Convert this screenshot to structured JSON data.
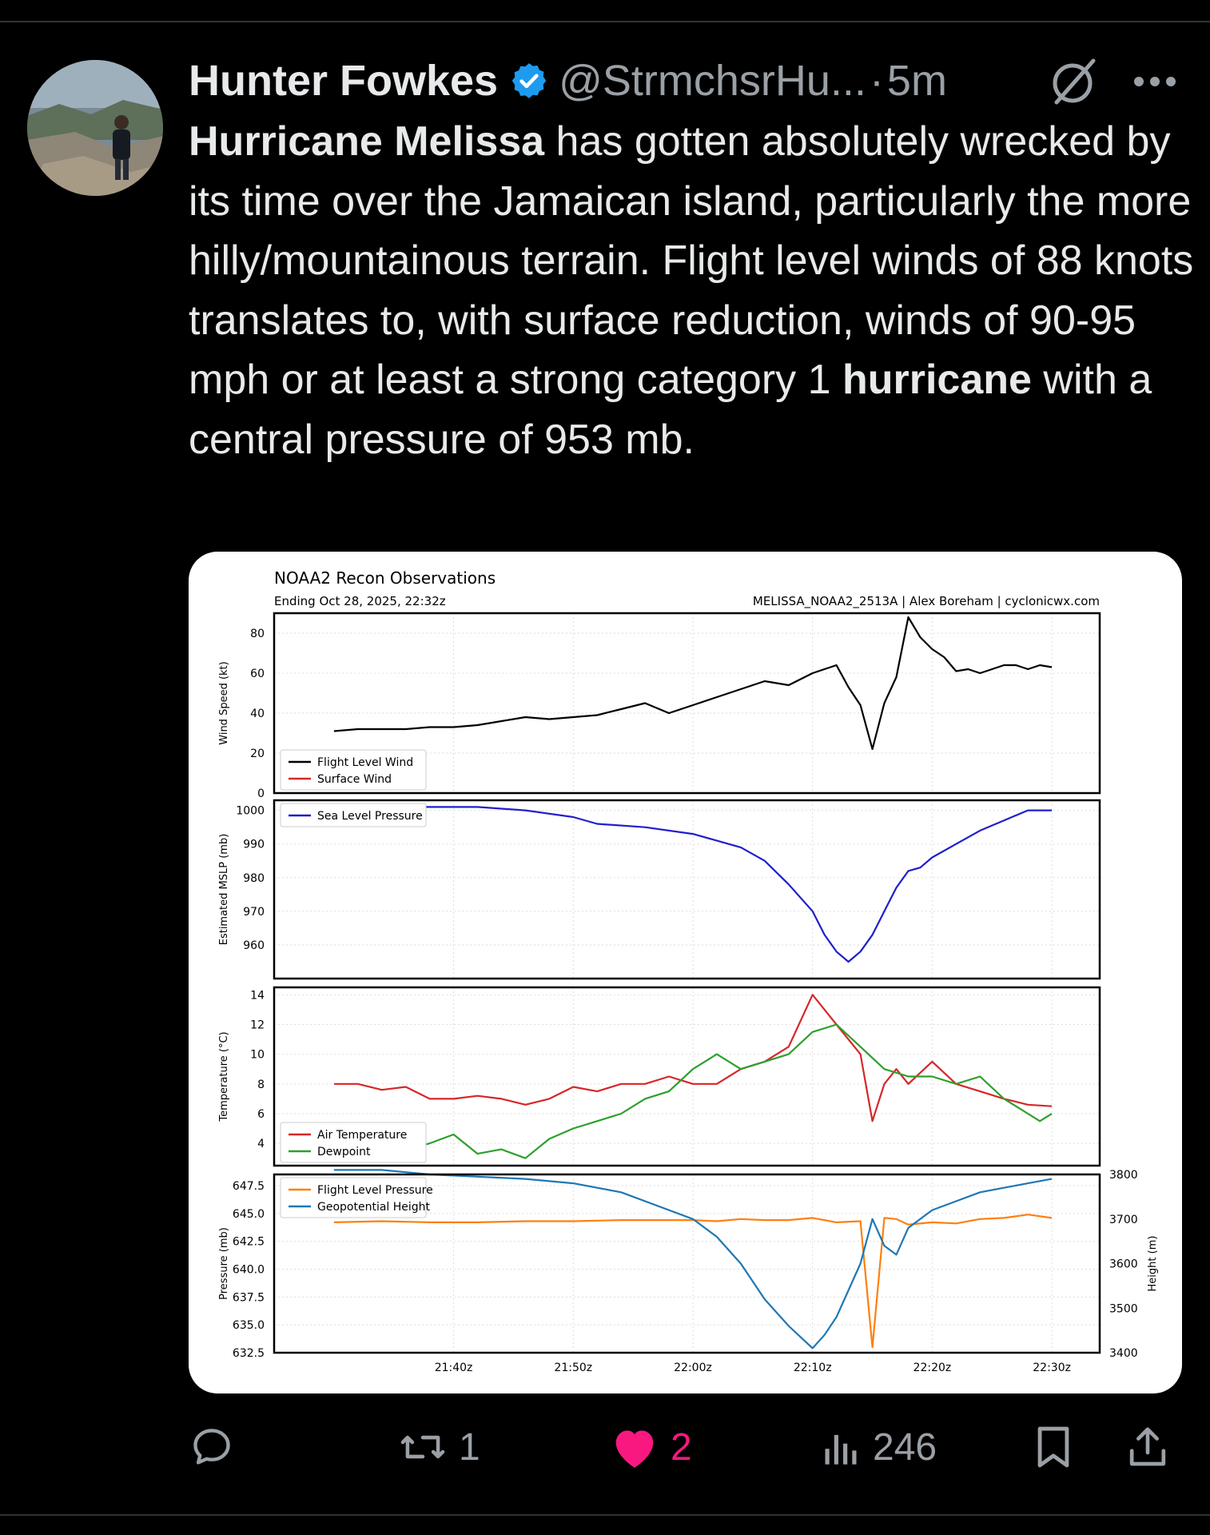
{
  "tweet": {
    "author_name": "Hunter Fowkes",
    "handle": "@StrmchsrHu...",
    "separator": "·",
    "time": "5m",
    "text_parts": [
      {
        "text": "Hurricane Melissa",
        "bold": true
      },
      {
        "text": " has gotten absolutely wrecked by its time over the Jamaican island, particularly the more hilly/mountainous terrain. Flight level winds of 88 knots translates to, with surface reduction, winds of 90-95 mph or at least a strong category 1 ",
        "bold": false
      },
      {
        "text": "hurricane",
        "bold": true
      },
      {
        "text": " with a central pressure of 953 mb.",
        "bold": false
      }
    ]
  },
  "actions": {
    "replies": "",
    "reposts": "1",
    "likes": "2",
    "views": "246"
  },
  "colors": {
    "like": "#f91880",
    "verified": "#1d9bf0",
    "muted": "#9aa0a6"
  },
  "chart_data": [
    {
      "type": "line",
      "title": "NOAA2 Recon Observations",
      "subtitle": "Ending Oct 28, 2025, 22:32z",
      "source": "MELISSA_NOAA2_2513A | Alex Boreham | cyclonicwx.com",
      "ylabel": "Wind Speed (kt)",
      "ylim": [
        0,
        90
      ],
      "yticks": [
        0,
        20,
        40,
        60,
        80
      ],
      "x_tick_labels": [
        "21:40z",
        "21:50z",
        "22:00z",
        "22:10z",
        "22:20z",
        "22:30z"
      ],
      "series": [
        {
          "name": "Flight Level Wind",
          "color": "#000000",
          "x": [
            0,
            2,
            4,
            6,
            8,
            10,
            12,
            14,
            16,
            18,
            20,
            22,
            24,
            26,
            28,
            30,
            32,
            34,
            36,
            38,
            40,
            42,
            43,
            44,
            45,
            46,
            47,
            48,
            49,
            50,
            51,
            52,
            53,
            54,
            55,
            56,
            57,
            58,
            59,
            60
          ],
          "y": [
            31,
            32,
            32,
            32,
            33,
            33,
            34,
            36,
            38,
            37,
            38,
            39,
            42,
            45,
            40,
            44,
            48,
            52,
            56,
            54,
            60,
            64,
            53,
            44,
            22,
            45,
            58,
            88,
            78,
            72,
            68,
            61,
            62,
            60,
            62,
            64,
            64,
            62,
            64,
            63
          ]
        },
        {
          "name": "Surface Wind",
          "color": "#d62728",
          "x": [],
          "y": []
        }
      ]
    },
    {
      "type": "line",
      "ylabel": "Estimated MSLP (mb)",
      "ylim": [
        950,
        1003
      ],
      "yticks": [
        960,
        970,
        980,
        990,
        1000
      ],
      "series": [
        {
          "name": "Sea Level Pressure",
          "color": "#1f1fcc",
          "x": [
            0,
            4,
            8,
            12,
            16,
            20,
            22,
            26,
            30,
            34,
            36,
            38,
            40,
            41,
            42,
            43,
            44,
            45,
            46,
            47,
            48,
            49,
            50,
            52,
            54,
            56,
            58,
            60
          ],
          "y": [
            1001,
            1001,
            1001,
            1001,
            1000,
            998,
            996,
            995,
            993,
            989,
            985,
            978,
            970,
            963,
            958,
            955,
            958,
            963,
            970,
            977,
            982,
            983,
            986,
            990,
            994,
            997,
            1000,
            1000
          ]
        }
      ]
    },
    {
      "type": "line",
      "ylabel": "Temperature (°C)",
      "ylim": [
        2.5,
        14.5
      ],
      "yticks": [
        4,
        6,
        8,
        10,
        12,
        14
      ],
      "series": [
        {
          "name": "Air Temperature",
          "color": "#d62728",
          "x": [
            0,
            2,
            4,
            6,
            8,
            10,
            12,
            14,
            16,
            18,
            20,
            22,
            24,
            26,
            28,
            30,
            32,
            34,
            36,
            38,
            40,
            42,
            44,
            45,
            46,
            47,
            48,
            50,
            52,
            54,
            56,
            58,
            60
          ],
          "y": [
            8,
            8,
            7.6,
            7.8,
            7,
            7,
            7.2,
            7,
            6.6,
            7,
            7.8,
            7.5,
            8,
            8,
            8.5,
            8,
            8,
            9,
            9.5,
            10.5,
            14,
            12,
            10,
            5.5,
            8,
            9,
            8,
            9.5,
            8,
            7.5,
            7,
            6.6,
            6.5
          ]
        },
        {
          "name": "Dewpoint",
          "color": "#2ca02c",
          "x": [
            0,
            2,
            4,
            6,
            8,
            10,
            12,
            14,
            16,
            18,
            20,
            22,
            24,
            26,
            28,
            30,
            32,
            34,
            36,
            38,
            40,
            42,
            44,
            46,
            48,
            50,
            52,
            54,
            56,
            58,
            59,
            60
          ],
          "y": [
            3.7,
            3.8,
            3.5,
            3.5,
            4,
            4.6,
            3.3,
            3.6,
            3,
            4.3,
            5,
            5.5,
            6,
            7,
            7.5,
            9,
            10,
            9,
            9.5,
            10,
            11.5,
            12,
            10.5,
            9,
            8.5,
            8.5,
            8,
            8.5,
            7,
            6,
            5.5,
            6
          ]
        }
      ]
    },
    {
      "type": "line",
      "ylabel": "Pressure (mb)",
      "y2label": "Height (m)",
      "ylim": [
        632.5,
        648.5
      ],
      "yticks": [
        632.5,
        635.0,
        637.5,
        640.0,
        642.5,
        645.0,
        647.5
      ],
      "y2lim": [
        3400,
        3800
      ],
      "y2ticks": [
        3400,
        3500,
        3600,
        3700,
        3800
      ],
      "series": [
        {
          "name": "Flight Level Pressure",
          "color": "#ff7f0e",
          "x": [
            0,
            4,
            8,
            12,
            16,
            20,
            24,
            26,
            30,
            32,
            34,
            36,
            38,
            40,
            42,
            44,
            45,
            46,
            47,
            48,
            50,
            52,
            54,
            56,
            58,
            60
          ],
          "y": [
            644.2,
            644.3,
            644.2,
            644.2,
            644.3,
            644.3,
            644.4,
            644.4,
            644.4,
            644.3,
            644.5,
            644.4,
            644.4,
            644.6,
            644.2,
            644.3,
            633,
            644.6,
            644.5,
            644.0,
            644.2,
            644.1,
            644.5,
            644.6,
            644.9,
            644.6
          ]
        },
        {
          "name": "Geopotential Height",
          "color": "#1f77b4",
          "x": [
            0,
            4,
            8,
            12,
            16,
            20,
            24,
            28,
            30,
            32,
            34,
            36,
            38,
            40,
            41,
            42,
            43,
            44,
            45,
            46,
            47,
            48,
            50,
            52,
            54,
            56,
            58,
            60
          ],
          "y": [
            3810,
            3810,
            3800,
            3795,
            3790,
            3780,
            3760,
            3720,
            3700,
            3660,
            3600,
            3520,
            3460,
            3410,
            3440,
            3480,
            3540,
            3600,
            3700,
            3640,
            3620,
            3680,
            3720,
            3740,
            3760,
            3770,
            3780,
            3790
          ]
        }
      ]
    }
  ]
}
